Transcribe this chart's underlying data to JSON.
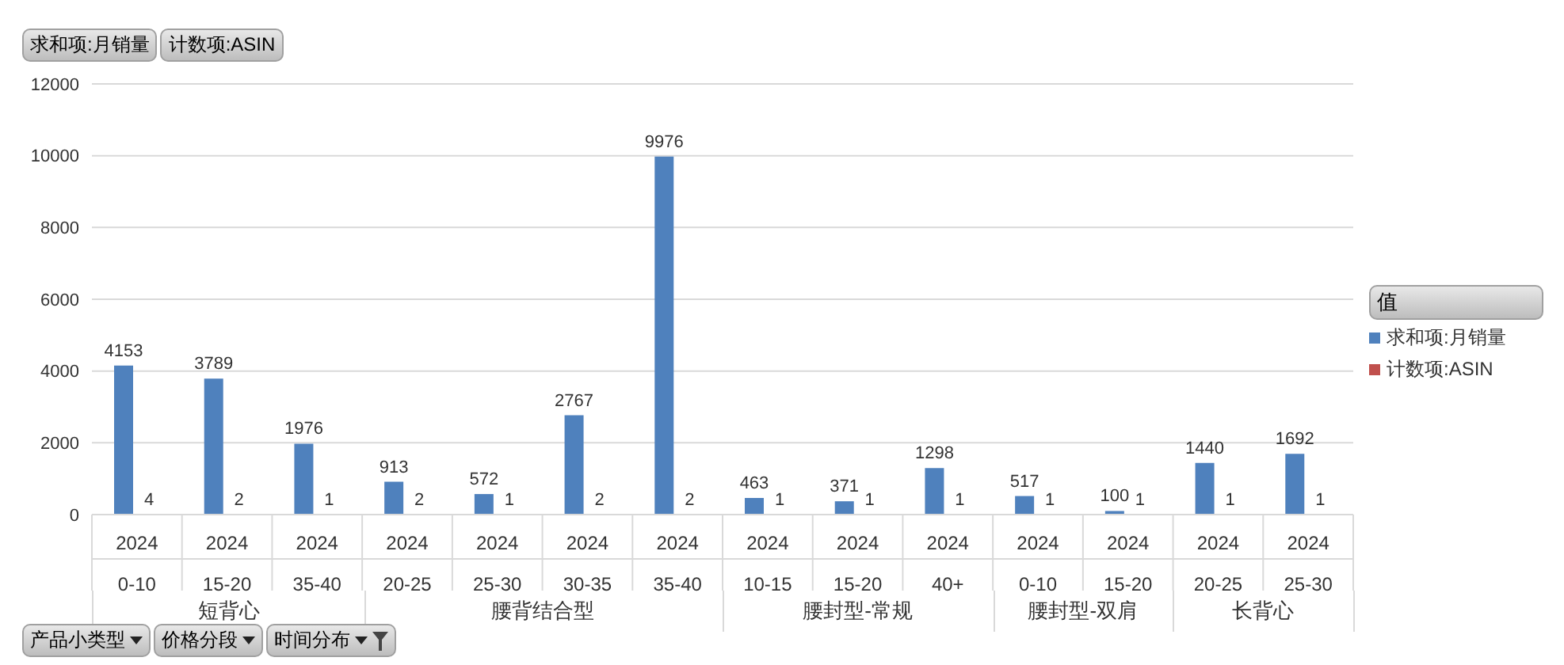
{
  "chart_data": {
    "type": "bar",
    "categories": [
      "2024\n0-10",
      "2024\n15-20",
      "2024\n35-40",
      "2024\n20-25",
      "2024\n25-30",
      "2024\n30-35",
      "2024\n35-40",
      "2024\n10-15",
      "2024\n15-20",
      "2024\n40+",
      "2024\n0-10",
      "2024\n15-20",
      "2024\n20-25",
      "2024\n25-30"
    ],
    "series": [
      {
        "name": "求和项:月销量",
        "color": "#4f81bd",
        "values": [
          4153,
          3789,
          1976,
          913,
          572,
          2767,
          9976,
          463,
          371,
          1298,
          517,
          100,
          1440,
          1692
        ]
      },
      {
        "name": "计数项:ASIN",
        "color": "#c0504d",
        "values": [
          4,
          2,
          1,
          2,
          1,
          2,
          2,
          1,
          1,
          1,
          1,
          1,
          1,
          1
        ]
      }
    ],
    "ylim": [
      0,
      12000
    ],
    "yticks": [
      0,
      2000,
      4000,
      6000,
      8000,
      10000,
      12000
    ],
    "grid": "y",
    "legend": "right",
    "legend_title": "值",
    "data_labels": true,
    "annotations": [
      "求和项:月销量",
      "计数项:ASIN",
      "产品小类型",
      "价格分段",
      "时间分布",
      "短背心",
      "腰背结合型",
      "腰封型-常规",
      "腰封型-双肩",
      "长背心"
    ]
  }
}
